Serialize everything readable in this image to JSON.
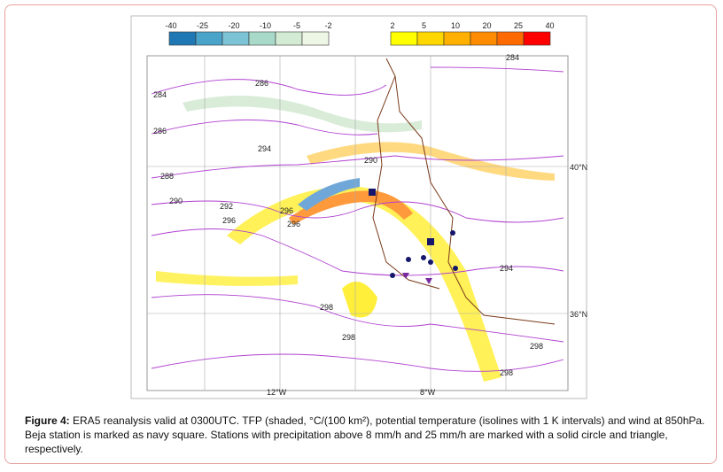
{
  "figure": {
    "colorbar_negative": [
      "-40",
      "-25",
      "-20",
      "-10",
      "-5",
      "-2"
    ],
    "colorbar_positive": [
      "2",
      "5",
      "10",
      "20",
      "25",
      "40"
    ],
    "isoline_labels": [
      "284",
      "286",
      "288",
      "290",
      "292",
      "294",
      "296",
      "298",
      "286",
      "284",
      "290",
      "294",
      "296",
      "298",
      "298",
      "296",
      "298"
    ],
    "latitude_labels": [
      "40°N",
      "36°N"
    ],
    "longitude_labels": [
      "12°W",
      "8°W"
    ],
    "caption_label": "Figure 4:",
    "caption_text": "ERA5 reanalysis valid at 0300UTC. TFP (shaded, °C/(100 km²), potential temperature (isolines with 1 K intervals) and wind at 850hPa. Beja station is marked as navy square. Stations with precipitation above 8 mm/h and 25 mm/h are marked with a solid circle and triangle, respectively."
  }
}
